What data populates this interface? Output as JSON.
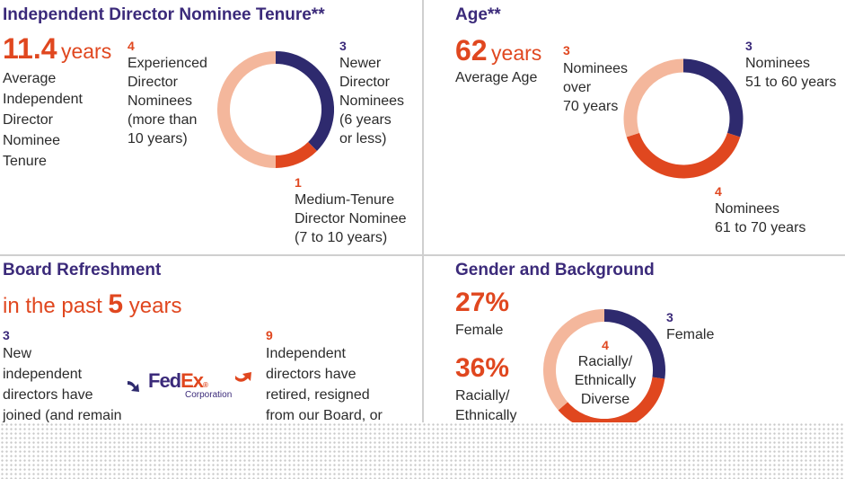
{
  "colors": {
    "navy": "#2e2a6e",
    "orange": "#e0471f",
    "peach": "#f4b79c",
    "title": "#3b2a7a"
  },
  "tenure": {
    "title": "Independent Director Nominee Tenure**",
    "avg_value": "11.4",
    "avg_unit": "years",
    "avg_label": [
      "Average",
      "Independent",
      "Director",
      "Nominee",
      "Tenure"
    ],
    "exp_count": "4",
    "exp_label": [
      "Experienced",
      "Director",
      "Nominees",
      "(more than",
      "10 years)"
    ],
    "new_count": "3",
    "new_label": [
      "Newer",
      "Director",
      "Nominees",
      "(6 years",
      "or less)"
    ],
    "med_count": "1",
    "med_label": [
      "Medium-Tenure",
      "Director Nominee",
      "(7 to 10 years)"
    ]
  },
  "age": {
    "title": "Age**",
    "avg_value": "62",
    "avg_unit": "years",
    "avg_label": "Average Age",
    "over70_count": "3",
    "over70_label": [
      "Nominees",
      "over",
      "70 years"
    ],
    "a51_count": "3",
    "a51_label": [
      "Nominees",
      "51 to 60 years"
    ],
    "a61_count": "4",
    "a61_label": [
      "Nominees",
      "61 to 70 years"
    ]
  },
  "refresh": {
    "title": "Board Refreshment",
    "sub_prefix": "in the past",
    "sub_num": "5",
    "sub_suffix": "years",
    "new_count": "3",
    "new_label": [
      "New",
      "independent",
      "directors have",
      "joined (and remain"
    ],
    "left_count": "9",
    "left_label": [
      "Independent",
      "directors have",
      "retired, resigned",
      "from our Board, or"
    ],
    "logo_main": "FedEx",
    "logo_sub": "Corporation"
  },
  "gender": {
    "title": "Gender and Background",
    "female_pct": "27%",
    "female_label": "Female",
    "diverse_pct": "36%",
    "diverse_label": [
      "Racially/",
      "Ethnically"
    ],
    "female_count": "3",
    "female_count_label": "Female",
    "diverse_count": "4",
    "diverse_count_label": [
      "Racially/",
      "Ethnically",
      "Diverse"
    ]
  },
  "chart_data": [
    {
      "type": "pie",
      "categories": [
        "Newer Director Nominees (6 years or less)",
        "Medium-Tenure Director Nominee (7 to 10 years)",
        "Experienced Director Nominees (more than 10 years)"
      ],
      "values": [
        3,
        1,
        4
      ],
      "colors": [
        "#2e2a6e",
        "#e0471f",
        "#f4b79c"
      ]
    },
    {
      "type": "pie",
      "categories": [
        "Nominees 51 to 60 years",
        "Nominees 61 to 70 years",
        "Nominees over 70 years"
      ],
      "values": [
        3,
        4,
        3
      ],
      "colors": [
        "#2e2a6e",
        "#e0471f",
        "#f4b79c"
      ]
    },
    {
      "type": "pie",
      "categories": [
        "Female",
        "Racially/Ethnically Diverse"
      ],
      "values": [
        3,
        4
      ],
      "colors": [
        "#2e2a6e",
        "#e0471f"
      ]
    }
  ]
}
